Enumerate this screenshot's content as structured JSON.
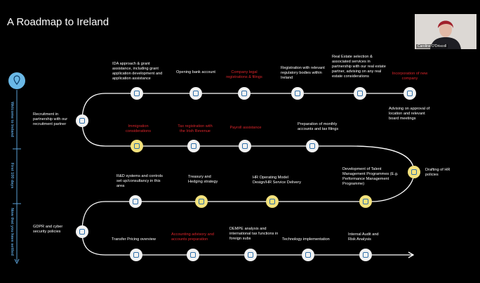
{
  "title": "A Roadmap to Ireland",
  "presenter": "Caroline O'Driscoll",
  "phases": [
    "Welcome to Ireland",
    "First 100 days",
    "Now that you have settled"
  ],
  "nodes": [
    {
      "label": "IDA approach & grant assistance, including grant application development and application assistance",
      "color": "#ffffff"
    },
    {
      "label": "Opening bank account",
      "color": "#ffffff"
    },
    {
      "label": "Company legal registrations & filings",
      "color": "#e0252b"
    },
    {
      "label": "Registration with relevant regulatory bodies within Ireland",
      "color": "#ffffff"
    },
    {
      "label": "Real Estate selection & associated services in partnership with our real estate partner, advising on any real estate considerations",
      "color": "#ffffff"
    },
    {
      "label": "Incorporation of new company",
      "color": "#e0252b"
    },
    {
      "label": "Recruitment in partnership with our recruitment partner",
      "color": "#ffffff"
    },
    {
      "label": "Immigration considerations",
      "color": "#e0252b"
    },
    {
      "label": "Tax registration with the Irish Revenue",
      "color": "#e0252b"
    },
    {
      "label": "Payroll assistance",
      "color": "#e0252b"
    },
    {
      "label": "Preparation of monthly accounts and tax filings",
      "color": "#ffffff"
    },
    {
      "label": "Drafting of HR policies",
      "color": "#ffffff"
    },
    {
      "label": "R&D systems and controls set up/consultancy in this area",
      "color": "#ffffff"
    },
    {
      "label": "Treasury and Hedging strategy",
      "color": "#ffffff"
    },
    {
      "label": "HR Operating Model Design/HR Service Delivery",
      "color": "#ffffff"
    },
    {
      "label": "Development of Talent Management Programmes (E.g. Performance Management Programme)",
      "color": "#ffffff"
    },
    {
      "label": "GDPR and cyber security policies",
      "color": "#ffffff"
    },
    {
      "label": "Transfer Pricing overview",
      "color": "#ffffff"
    },
    {
      "label": "Accounting advisory and accounts preparation",
      "color": "#e0252b"
    },
    {
      "label": "DEMPE analysis and international tax functions in foreign subs",
      "color": "#ffffff"
    },
    {
      "label": "Technology implementation",
      "color": "#ffffff"
    },
    {
      "label": "Internal Audit and Risk Analysis",
      "color": "#ffffff"
    }
  ],
  "note": "Advising on approval of location and relevant board meetings"
}
